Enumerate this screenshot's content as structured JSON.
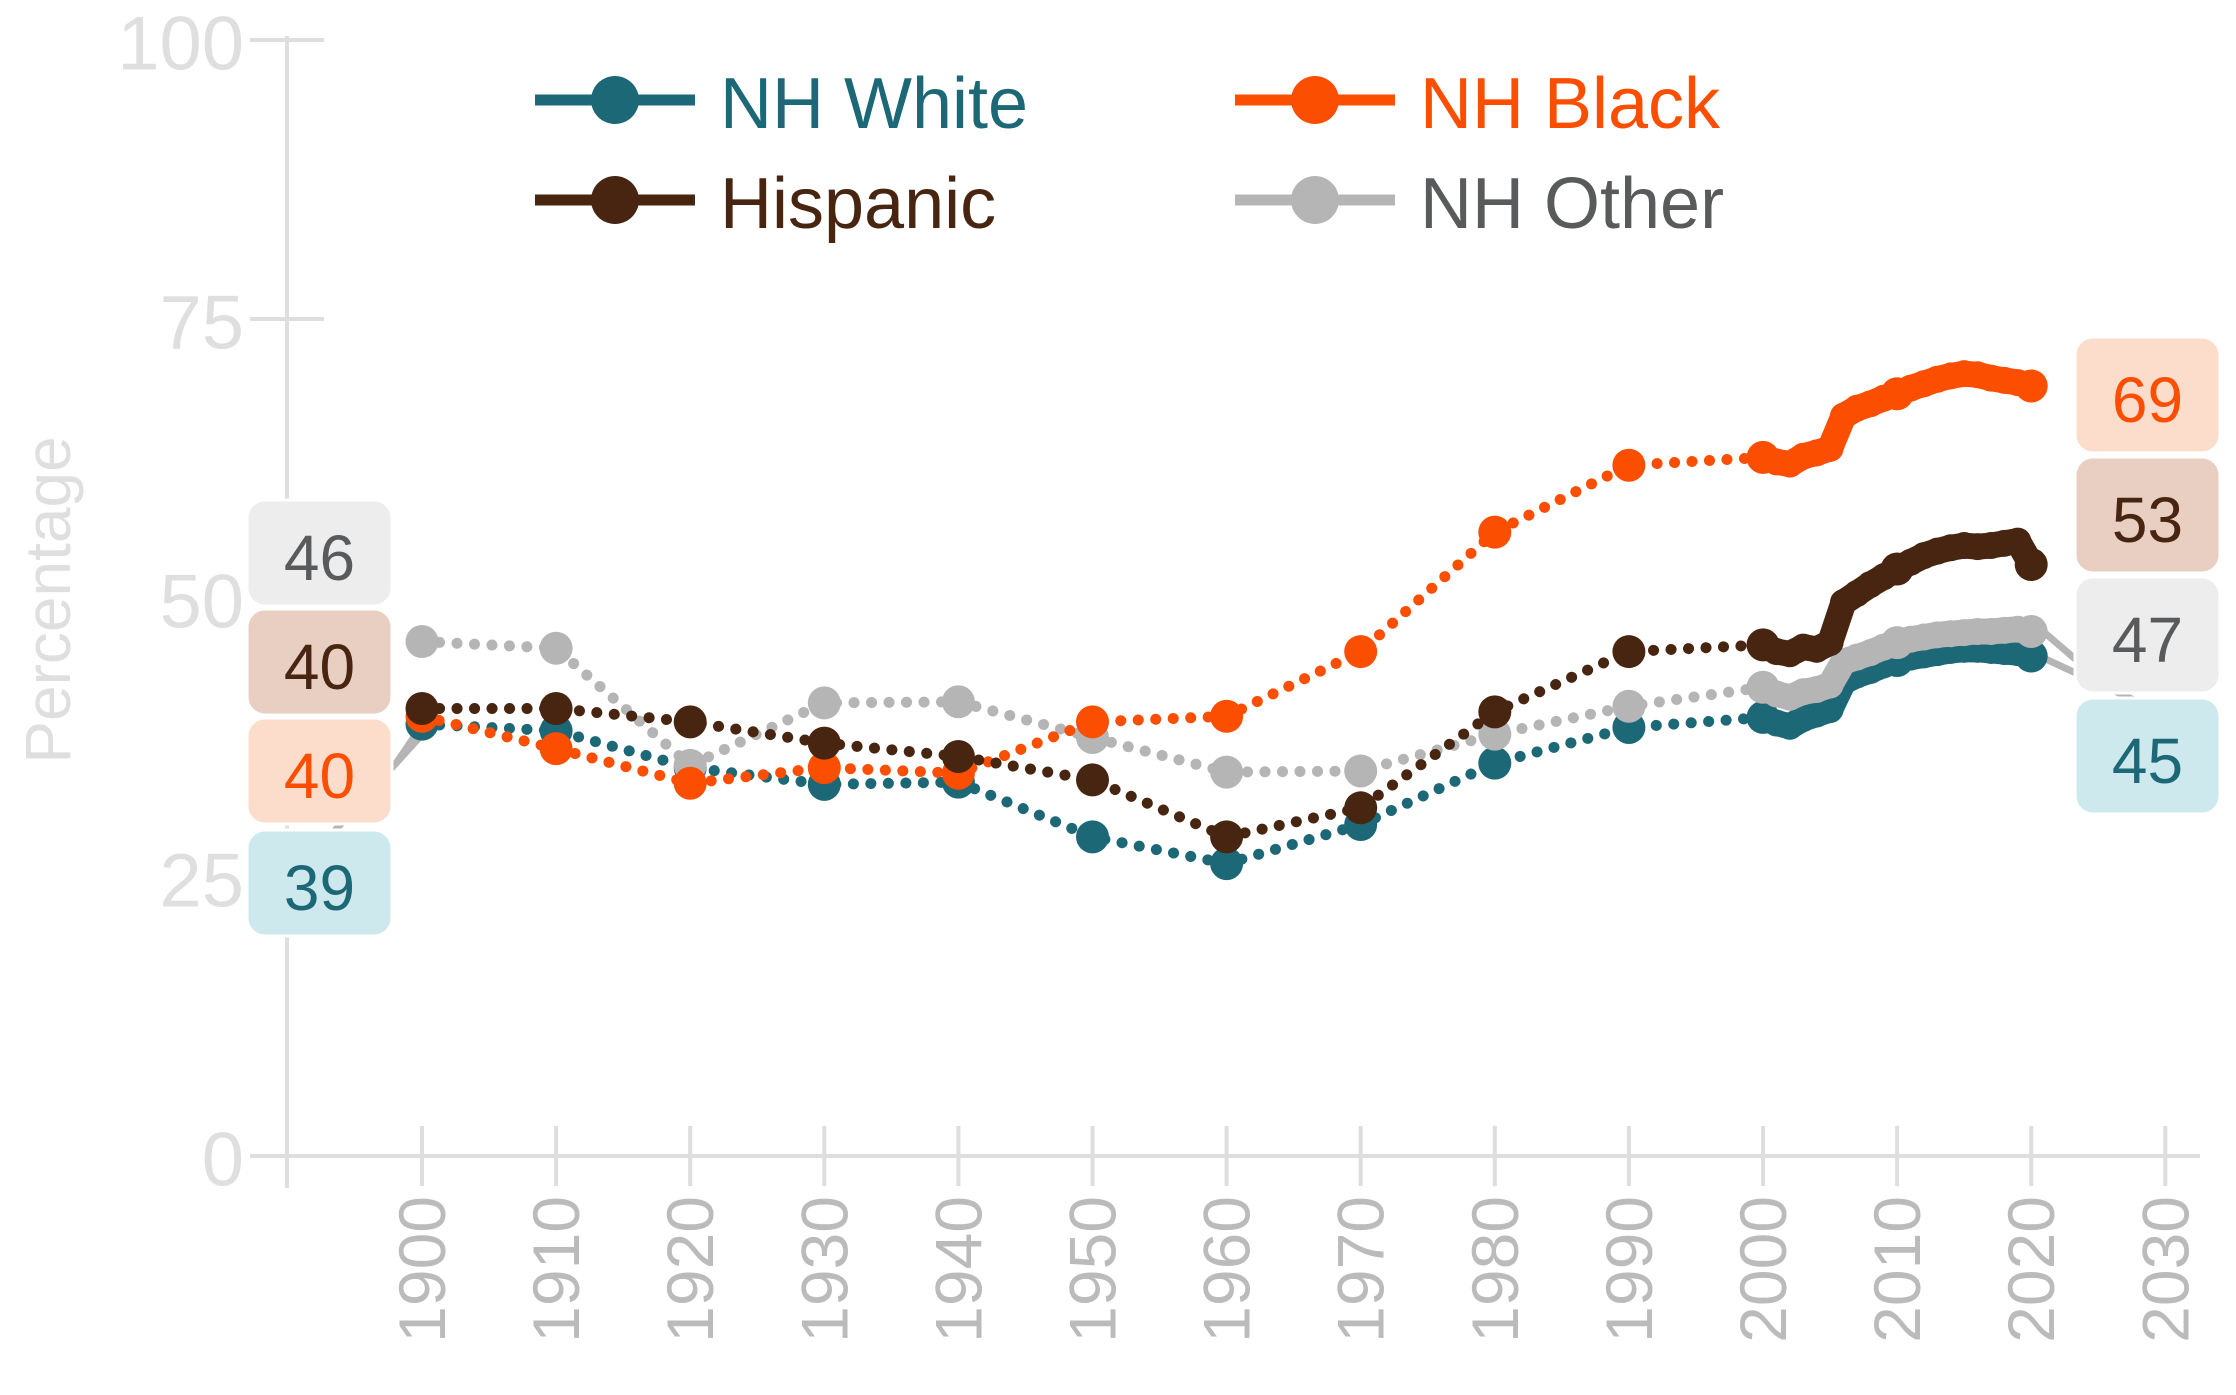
{
  "y_axis": {
    "label": "Percentage",
    "tick_values": [
      0,
      25,
      50,
      75,
      100
    ],
    "color_line": "#DEDEDE",
    "color_labels": "#DFDFDF"
  },
  "x_axis": {
    "tick_values": [
      1900,
      1910,
      1920,
      1930,
      1940,
      1950,
      1960,
      1970,
      1980,
      1990,
      2000,
      2010,
      2020,
      2030
    ],
    "color_line": "#DEDEDE",
    "color_labels": "#BBBBBB"
  },
  "legend": {
    "items": [
      {
        "label": "NH White",
        "marker_color": "#1D6876",
        "text_color": "#1D6876"
      },
      {
        "label": "NH Black",
        "marker_color": "#FC4E00",
        "text_color": "#FC4E00"
      },
      {
        "label": "Hispanic",
        "marker_color": "#472511",
        "text_color": "#472511"
      },
      {
        "label": "NH Other",
        "marker_color": "#B5B5B5",
        "text_color": "#595A5C"
      }
    ]
  },
  "start_labels": [
    {
      "text": "46",
      "series": "NH Other",
      "bg": "#EDEDED",
      "color": "#595A5C"
    },
    {
      "text": "40",
      "series": "Hispanic",
      "bg": "#E8CFC1",
      "color": "#472511"
    },
    {
      "text": "40",
      "series": "NH Black",
      "bg": "#FCDCCB",
      "color": "#FC4E00"
    },
    {
      "text": "39",
      "series": "NH White",
      "bg": "#CEE9EE",
      "color": "#1D6876"
    }
  ],
  "end_labels": [
    {
      "text": "69",
      "series": "NH Black",
      "bg": "#FCDCCB",
      "color": "#FC4E00"
    },
    {
      "text": "53",
      "series": "Hispanic",
      "bg": "#E8CFC1",
      "color": "#472511"
    },
    {
      "text": "47",
      "series": "NH Other",
      "bg": "#EDEDED",
      "color": "#595A5C"
    },
    {
      "text": "45",
      "series": "NH White",
      "bg": "#CEE9EE",
      "color": "#1D6876"
    }
  ],
  "chart_data": {
    "type": "line",
    "title": "",
    "xlabel": "",
    "ylabel": "Percentage",
    "xlim": [
      1893,
      2035
    ],
    "ylim": [
      0,
      100
    ],
    "grid": false,
    "legend_position": "top",
    "line_style": "dotted-with-decade-markers, annual points 2000-2020",
    "x_decades": [
      1900,
      1910,
      1920,
      1930,
      1940,
      1950,
      1960,
      1970,
      1980,
      1990
    ],
    "x_annual": [
      2000,
      2001,
      2002,
      2003,
      2004,
      2005,
      2006,
      2007,
      2008,
      2009,
      2010,
      2011,
      2012,
      2013,
      2014,
      2015,
      2016,
      2017,
      2018,
      2019,
      2020
    ],
    "series": [
      {
        "name": "NH White",
        "color": "#1D6876",
        "start_label": "39",
        "end_label": "45",
        "decade_values": [
          38.7,
          38.1,
          34.8,
          33.3,
          33.5,
          28.6,
          26.2,
          29.7,
          35.2,
          38.4
        ],
        "annual_values": [
          39.3,
          38.8,
          38.5,
          39.2,
          39.6,
          40.0,
          42.5,
          43.1,
          43.5,
          44.0,
          44.4,
          44.7,
          44.9,
          45.1,
          45.3,
          45.4,
          45.4,
          45.3,
          45.2,
          45.1,
          44.8
        ]
      },
      {
        "name": "NH Black",
        "color": "#FC4E00",
        "start_label": "40",
        "end_label": "69",
        "decade_values": [
          39.4,
          36.5,
          33.4,
          34.8,
          34.3,
          38.9,
          39.4,
          45.2,
          55.9,
          61.9
        ],
        "annual_values": [
          62.6,
          62.2,
          62.0,
          62.7,
          63.0,
          63.4,
          66.3,
          67.0,
          67.4,
          67.9,
          68.3,
          68.8,
          69.2,
          69.6,
          69.9,
          70.1,
          70.0,
          69.7,
          69.5,
          69.3,
          69.0
        ]
      },
      {
        "name": "Hispanic",
        "color": "#472511",
        "start_label": "40",
        "end_label": "53",
        "decade_values": [
          40.1,
          40.1,
          38.9,
          37.0,
          35.8,
          33.7,
          28.6,
          31.2,
          39.8,
          45.2
        ],
        "annual_values": [
          45.8,
          45.2,
          45.0,
          45.6,
          45.4,
          46.0,
          49.6,
          50.4,
          51.2,
          51.9,
          52.6,
          53.2,
          53.8,
          54.2,
          54.5,
          54.7,
          54.6,
          54.7,
          54.9,
          55.1,
          53.0
        ]
      },
      {
        "name": "NH Other",
        "color": "#B5B5B5",
        "start_label": "46",
        "end_label": "47",
        "decade_values": [
          46.1,
          45.5,
          35.0,
          40.6,
          40.7,
          37.5,
          34.4,
          34.5,
          37.8,
          40.3
        ],
        "annual_values": [
          42.0,
          41.4,
          41.1,
          41.6,
          41.8,
          42.2,
          44.3,
          44.7,
          45.1,
          45.6,
          46.0,
          46.3,
          46.5,
          46.7,
          46.8,
          46.9,
          47.0,
          47.0,
          47.1,
          47.2,
          47.0
        ]
      }
    ]
  }
}
